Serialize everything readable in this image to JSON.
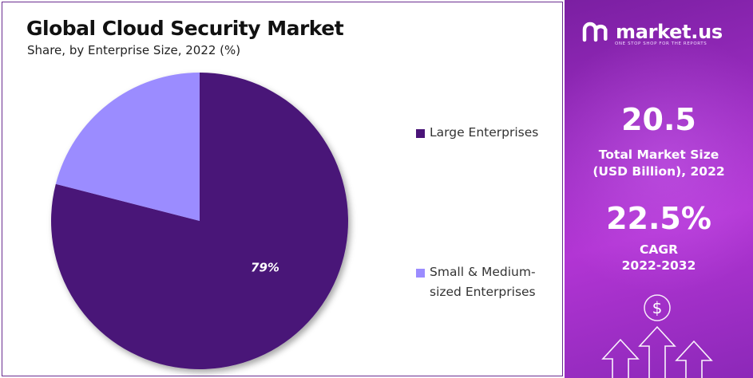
{
  "chart_title": "Global Cloud Security Market",
  "chart_subtitle": "Share, by Enterprise Size, 2022 (%)",
  "chart_data": {
    "type": "pie",
    "title": "Global Cloud Security Market",
    "subtitle": "Share, by Enterprise Size, 2022 (%)",
    "categories": [
      "Large Enterprises",
      "Small & Medium-sized Enterprises"
    ],
    "values": [
      79,
      21
    ],
    "data_labels": [
      "79%",
      ""
    ],
    "colors": [
      "#4a1478",
      "#9b8cff"
    ],
    "legend_position": "right"
  },
  "legend": {
    "items": [
      {
        "label_line1": "Large Enterprises",
        "label_line2": "",
        "color": "#4a1478"
      },
      {
        "label_line1": "Small & Medium-",
        "label_line2": "sized Enterprises",
        "color": "#9b8cff"
      }
    ]
  },
  "side": {
    "brand_name": "market.us",
    "brand_tagline": "ONE STOP SHOP FOR THE REPORTS",
    "market_size_value": "20.5",
    "market_size_label_line1": "Total Market Size",
    "market_size_label_line2": "(USD Billion), 2022",
    "cagr_value": "22.5%",
    "cagr_label_line1": "CAGR",
    "cagr_label_line2": "2022-2032",
    "dollar_symbol": "$"
  }
}
